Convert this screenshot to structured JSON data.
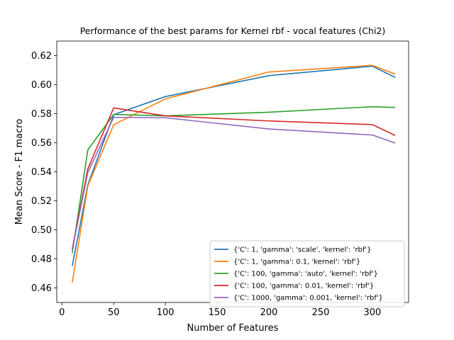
{
  "chart_data": {
    "type": "line",
    "title": "Performance of the best params for Kernel rbf - vocal features (Chi2)",
    "xlabel": "Number of Features",
    "ylabel": "Mean Score - F1 macro",
    "xlim": [
      -5,
      335
    ],
    "ylim": [
      0.45,
      0.63
    ],
    "xticks": [
      0,
      50,
      100,
      150,
      200,
      250,
      300
    ],
    "yticks": [
      0.46,
      0.48,
      0.5,
      0.52,
      0.54,
      0.56,
      0.58,
      0.6,
      0.62
    ],
    "legend_position": "lower-right",
    "x": [
      10,
      25,
      50,
      100,
      200,
      300,
      322
    ],
    "series": [
      {
        "name": "{'C': 1, 'gamma': 'scale', 'kernel': 'rbf'}",
        "color": "#1f77b4",
        "values": [
          0.4752,
          0.531,
          0.5793,
          0.5918,
          0.6062,
          0.6127,
          0.605
        ]
      },
      {
        "name": "{'C': 1, 'gamma': 0.1, 'kernel': 'rbf'}",
        "color": "#ff7f0e",
        "values": [
          0.4637,
          0.5303,
          0.5724,
          0.5902,
          0.6087,
          0.6133,
          0.6073
        ]
      },
      {
        "name": "{'C': 100, 'gamma': 'auto', 'kernel': 'rbf'}",
        "color": "#2ca02c",
        "values": [
          0.484,
          0.555,
          0.5795,
          0.5785,
          0.581,
          0.5848,
          0.5843
        ]
      },
      {
        "name": "{'C': 100, 'gamma': 0.01, 'kernel': 'rbf'}",
        "color": "#d62728",
        "values": [
          0.487,
          0.542,
          0.584,
          0.5785,
          0.575,
          0.5725,
          0.565
        ]
      },
      {
        "name": "{'C': 1000, 'gamma': 0.001, 'kernel': 'rbf'}",
        "color": "#9467bd",
        "values": [
          0.4865,
          0.5395,
          0.5775,
          0.5772,
          0.5695,
          0.5653,
          0.5598
        ]
      }
    ]
  }
}
